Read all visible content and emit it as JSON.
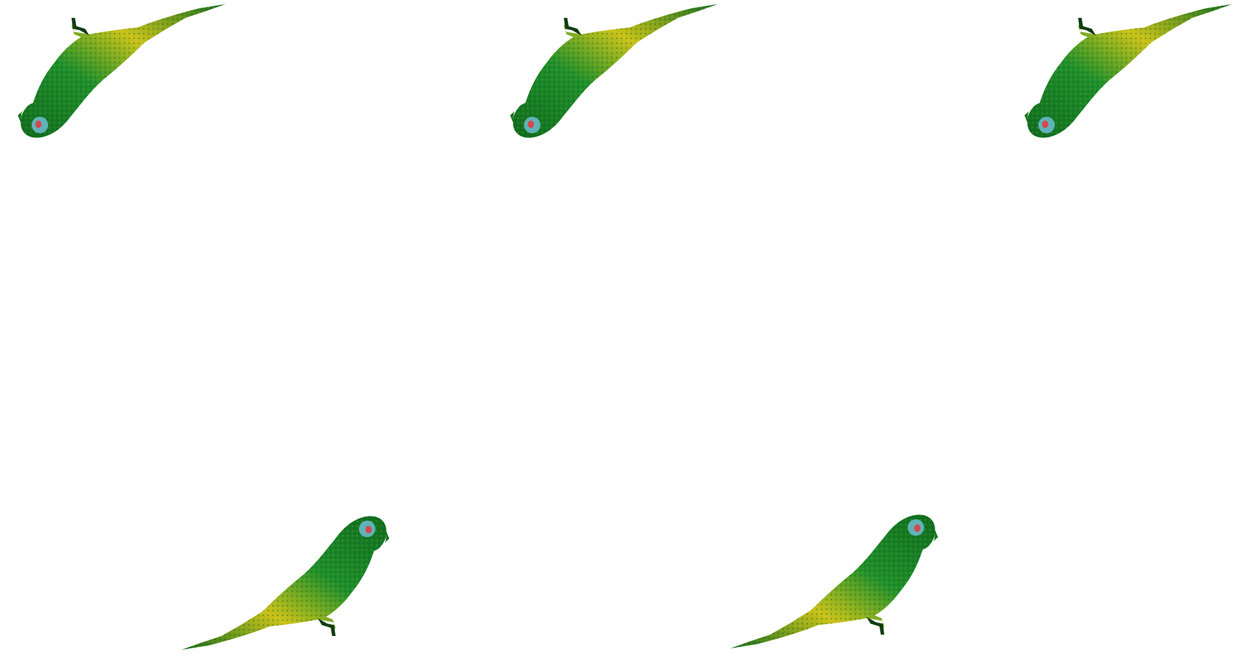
{
  "scene": {
    "background": "#ffffff",
    "birds": [
      {
        "name": "parakeet-1",
        "orientation": "upside-down"
      },
      {
        "name": "parakeet-2",
        "orientation": "upside-down"
      },
      {
        "name": "parakeet-3",
        "orientation": "upside-down"
      },
      {
        "name": "parakeet-4",
        "orientation": "upright"
      },
      {
        "name": "parakeet-5",
        "orientation": "upright"
      }
    ],
    "colors": {
      "body_green": "#1e8f2c",
      "dark_green": "#0f6b1e",
      "yellow": "#c9c21a",
      "eye_ring": "#5fb3b8",
      "eye_red": "#d8464e",
      "foot": "#103d12"
    }
  }
}
